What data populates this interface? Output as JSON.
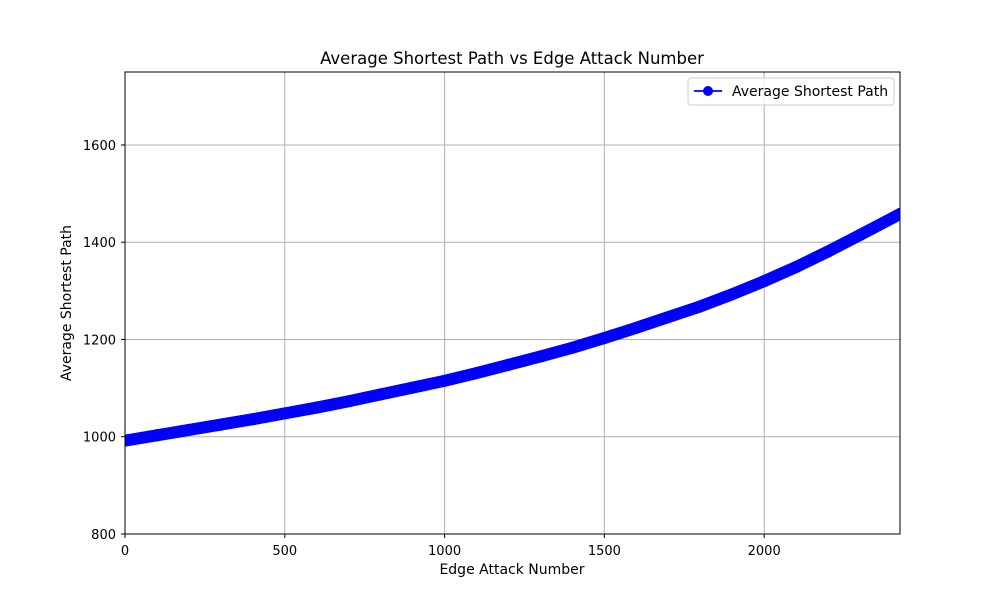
{
  "chart_data": {
    "type": "line",
    "title": "Average Shortest Path vs Edge Attack Number",
    "xlabel": "Edge Attack Number",
    "ylabel": "Average Shortest Path",
    "xlim": [
      0,
      2425
    ],
    "ylim": [
      800,
      1750
    ],
    "xticks": [
      0,
      500,
      1000,
      1500,
      2000
    ],
    "yticks": [
      800,
      1000,
      1200,
      1400,
      1600
    ],
    "grid": true,
    "legend_position": "top-right",
    "series": [
      {
        "name": "Average Shortest Path",
        "color": "#0000ff",
        "marker": "circle",
        "x": [
          0,
          100,
          200,
          300,
          400,
          500,
          600,
          700,
          800,
          900,
          1000,
          1100,
          1200,
          1300,
          1400,
          1500,
          1600,
          1700,
          1800,
          1900,
          2000,
          2100,
          2200,
          2300,
          2425
        ],
        "y": [
          992,
          1003,
          1014,
          1025,
          1036,
          1048,
          1060,
          1073,
          1087,
          1101,
          1115,
          1131,
          1148,
          1165,
          1183,
          1203,
          1224,
          1246,
          1268,
          1293,
          1320,
          1349,
          1381,
          1415,
          1458
        ]
      }
    ]
  }
}
